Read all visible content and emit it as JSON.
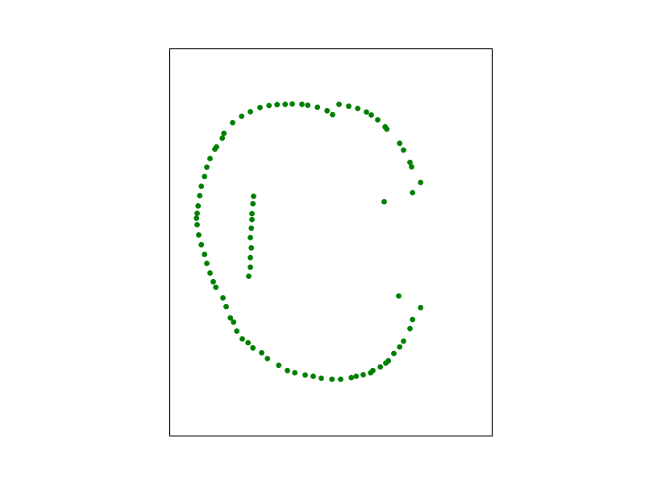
{
  "chart_data": {
    "type": "scatter",
    "title": "",
    "xlabel": "",
    "ylabel": "",
    "xlim": [
      0,
      100
    ],
    "ylim": [
      0,
      120
    ],
    "axes_ticks": "none",
    "grid": false,
    "legend": "none",
    "marker_color": "#008000",
    "series": [
      {
        "points": [
          [
            52.5,
            102.8
          ],
          [
            55.5,
            102.2
          ],
          [
            58.3,
            101.5
          ],
          [
            61.0,
            100.4
          ],
          [
            62.5,
            99.5
          ],
          [
            64.5,
            98.0
          ],
          [
            66.8,
            95.8
          ],
          [
            67.3,
            95.1
          ],
          [
            71.3,
            90.7
          ],
          [
            72.5,
            88.6
          ],
          [
            74.5,
            84.8
          ],
          [
            75.0,
            83.4
          ],
          [
            77.8,
            78.6
          ],
          [
            75.3,
            75.4
          ],
          [
            77.8,
            39.8
          ],
          [
            75.3,
            36.1
          ],
          [
            74.5,
            33.3
          ],
          [
            72.5,
            29.4
          ],
          [
            71.3,
            27.6
          ],
          [
            69.5,
            25.6
          ],
          [
            67.8,
            23.3
          ],
          [
            67.0,
            22.6
          ],
          [
            65.3,
            21.4
          ],
          [
            63.0,
            20.3
          ],
          [
            62.3,
            19.6
          ],
          [
            60.0,
            19.0
          ],
          [
            57.8,
            18.5
          ],
          [
            56.3,
            18.1
          ],
          [
            53.0,
            17.6
          ],
          [
            50.3,
            17.6
          ],
          [
            47.0,
            17.9
          ],
          [
            44.5,
            18.5
          ],
          [
            42.0,
            18.9
          ],
          [
            38.8,
            19.6
          ],
          [
            36.5,
            20.3
          ],
          [
            33.8,
            21.9
          ],
          [
            30.3,
            24.0
          ],
          [
            28.5,
            25.8
          ],
          [
            25.8,
            27.3
          ],
          [
            24.3,
            28.9
          ],
          [
            22.5,
            30.1
          ],
          [
            20.8,
            32.5
          ],
          [
            19.8,
            35.3
          ],
          [
            18.8,
            36.6
          ],
          [
            17.5,
            40.1
          ],
          [
            16.5,
            42.8
          ],
          [
            14.3,
            46.1
          ],
          [
            13.5,
            47.8
          ],
          [
            12.5,
            50.5
          ],
          [
            11.5,
            53.5
          ],
          [
            10.8,
            56.3
          ],
          [
            9.8,
            59.3
          ],
          [
            9.0,
            62.3
          ],
          [
            8.5,
            65.5
          ],
          [
            8.3,
            67.5
          ],
          [
            8.5,
            69.0
          ],
          [
            8.8,
            71.3
          ],
          [
            9.3,
            74.5
          ],
          [
            9.8,
            77.4
          ],
          [
            10.8,
            80.4
          ],
          [
            11.5,
            83.3
          ],
          [
            12.5,
            86.0
          ],
          [
            14.0,
            88.9
          ],
          [
            14.5,
            89.6
          ],
          [
            16.3,
            92.3
          ],
          [
            16.8,
            93.8
          ],
          [
            19.5,
            97.1
          ],
          [
            22.3,
            99.1
          ],
          [
            25.0,
            100.5
          ],
          [
            28.0,
            101.8
          ],
          [
            30.8,
            102.4
          ],
          [
            33.3,
            102.7
          ],
          [
            35.8,
            102.8
          ],
          [
            38.0,
            102.9
          ],
          [
            41.0,
            102.8
          ],
          [
            42.8,
            102.5
          ],
          [
            45.8,
            101.9
          ],
          [
            48.8,
            100.8
          ],
          [
            50.5,
            99.6
          ],
          [
            24.5,
            49.5
          ],
          [
            25.0,
            52.3
          ],
          [
            25.0,
            55.3
          ],
          [
            25.3,
            58.3
          ],
          [
            25.0,
            61.5
          ],
          [
            25.3,
            64.4
          ],
          [
            25.5,
            67.1
          ],
          [
            25.5,
            68.9
          ],
          [
            25.8,
            72.0
          ],
          [
            26.0,
            74.3
          ],
          [
            66.5,
            72.6
          ],
          [
            71.0,
            43.4
          ]
        ]
      }
    ]
  }
}
